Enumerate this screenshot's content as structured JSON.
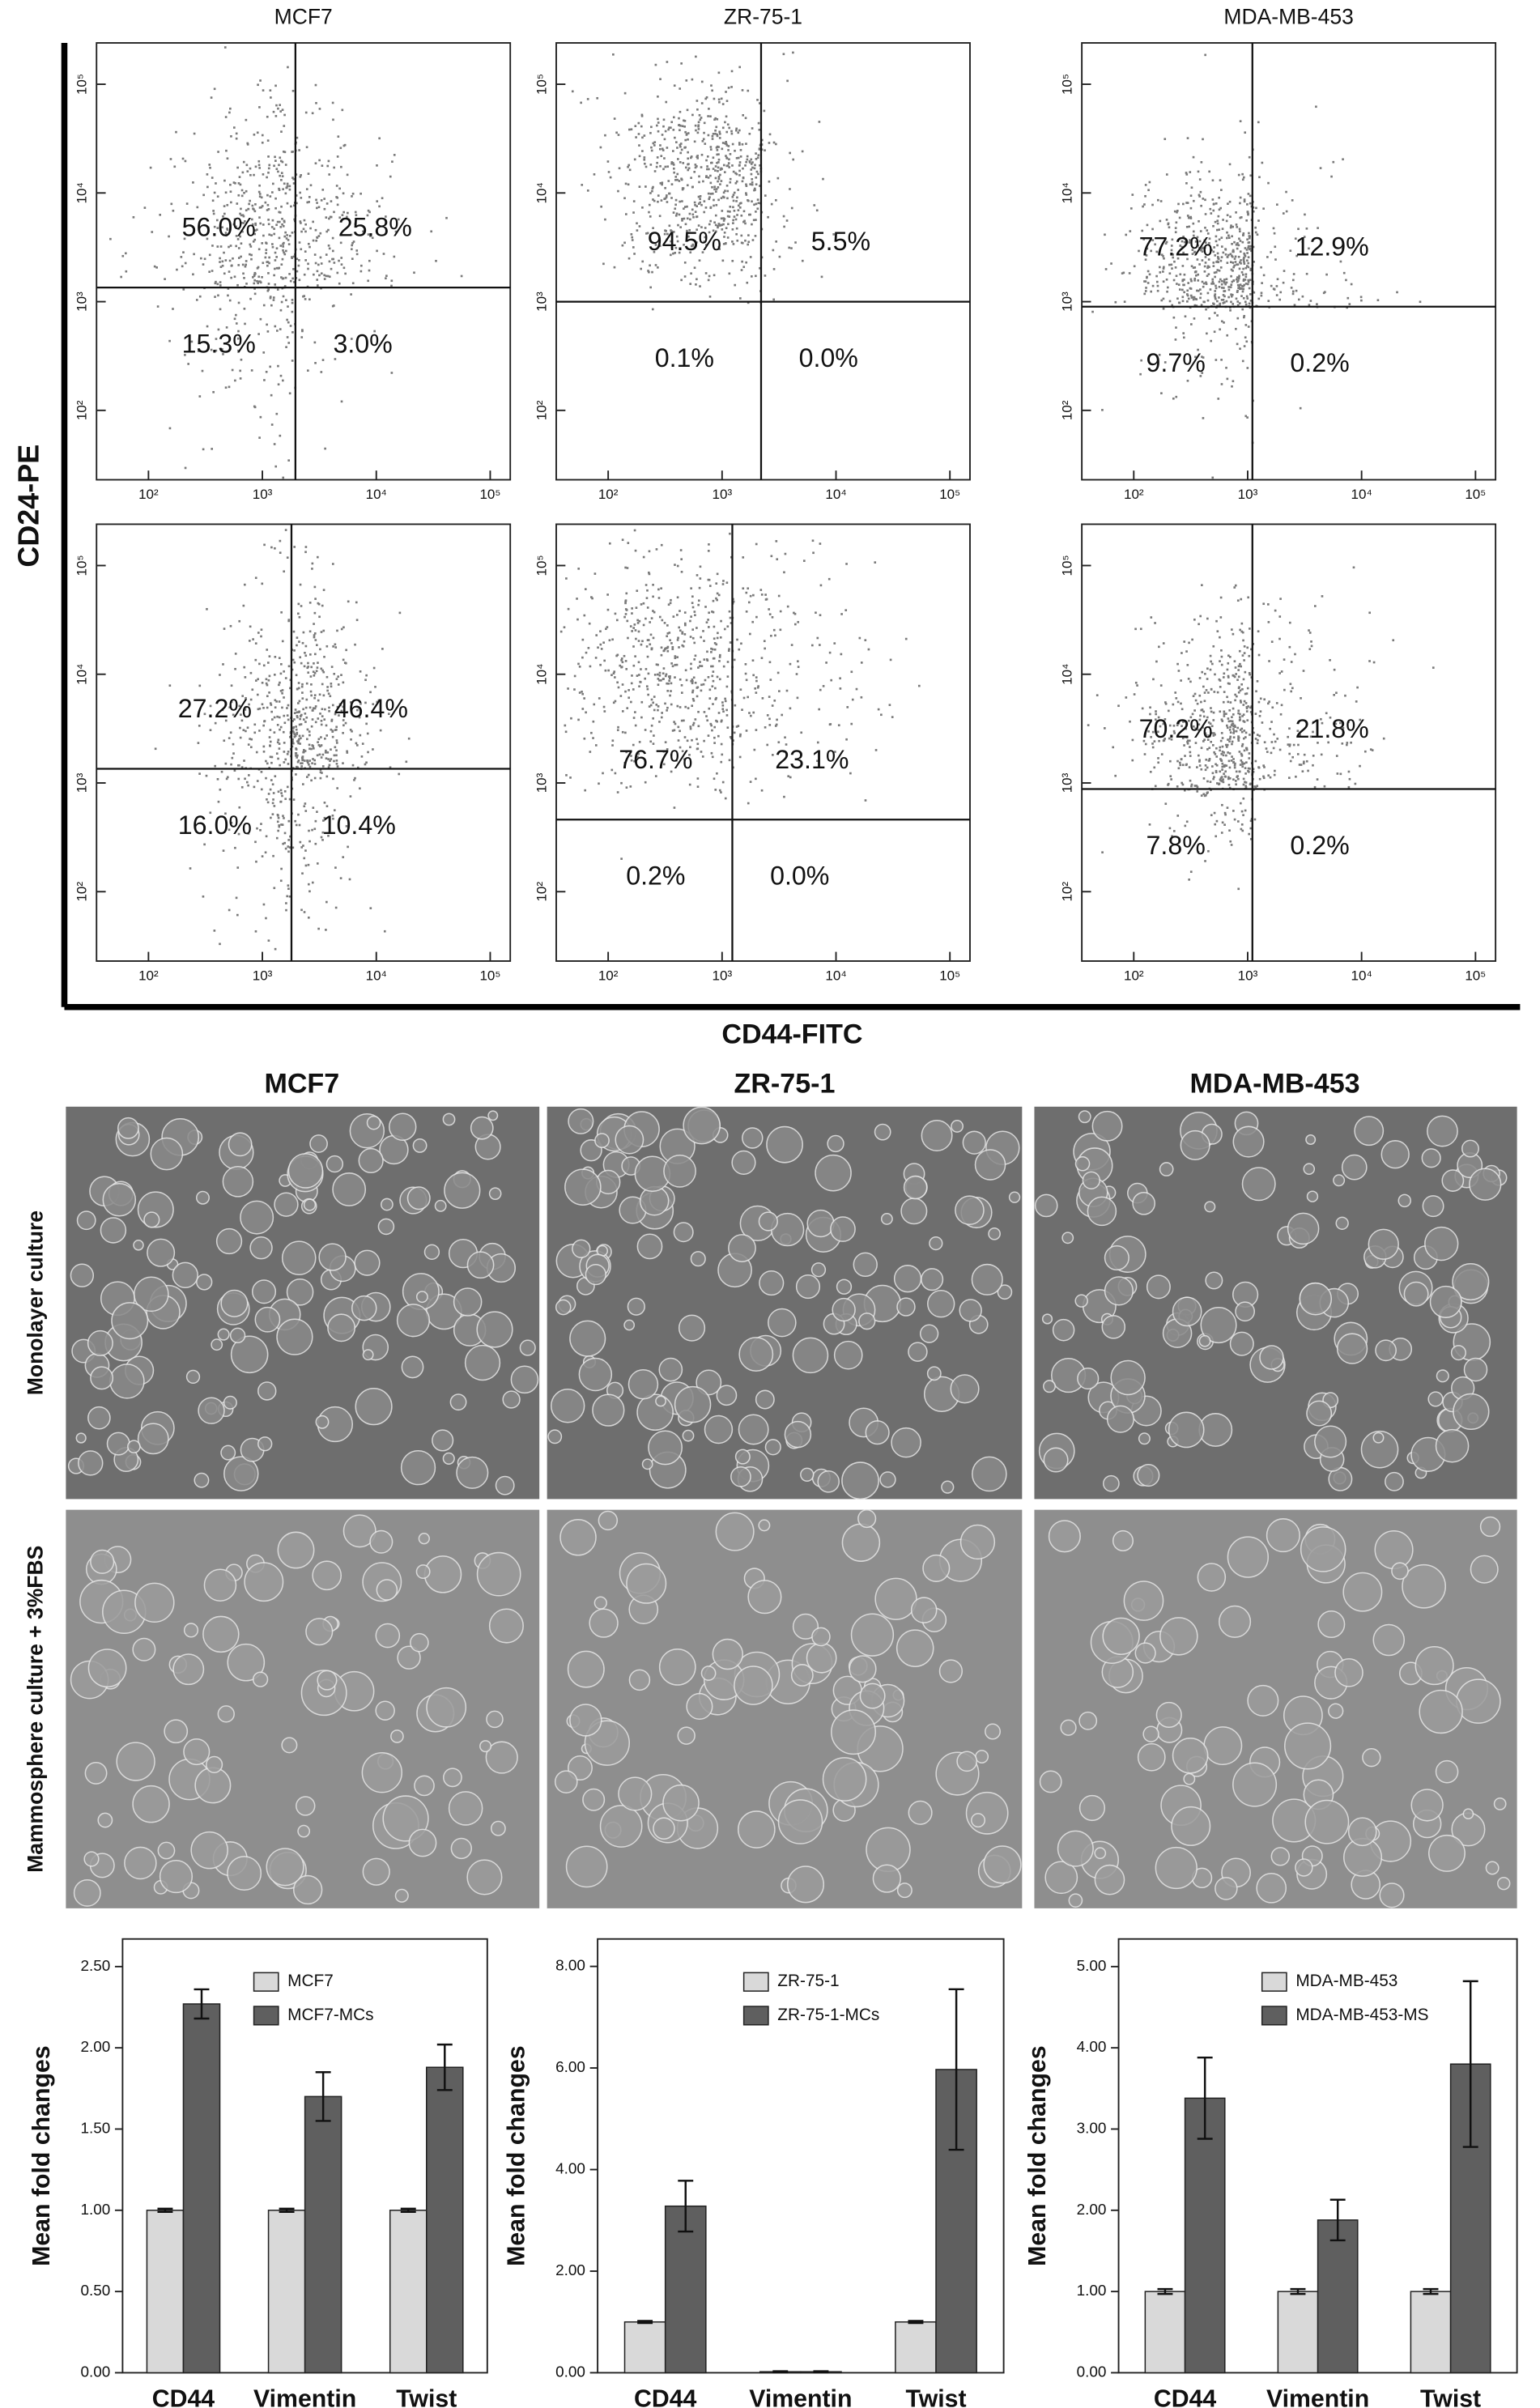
{
  "flow_axis_labels": {
    "x": "CD44-FITC",
    "y": "CD24-PE"
  },
  "micrographs": {
    "columns": [
      "MCF7",
      "ZR-75-1",
      "MDA-MB-453"
    ],
    "rows": [
      "Monolayer culture",
      "Mammosphere culture + 3%FBS"
    ]
  },
  "chart_data": [
    {
      "type": "quadrant",
      "title": "MCF7",
      "log_scale": true,
      "xlim": [
        35,
        150000
      ],
      "ylim": [
        23,
        240000
      ],
      "xticks": [
        {
          "value": 100,
          "label": "10²"
        },
        {
          "value": 1000,
          "label": "10³"
        },
        {
          "value": 10000,
          "label": "10⁴"
        },
        {
          "value": 100000,
          "label": "10⁵"
        }
      ],
      "yticks": [
        {
          "value": 100,
          "label": "10²"
        },
        {
          "value": 1000,
          "label": "10³"
        },
        {
          "value": 10000,
          "label": "10⁴"
        },
        {
          "value": 100000,
          "label": "10⁵"
        }
      ],
      "x_gate": 1950,
      "y_gate": 1350,
      "color": "#7a7a7a",
      "values": [
        56.0,
        25.8,
        15.3,
        3.0
      ],
      "value_labels": [
        "56.0%",
        "25.8%",
        "15.3%",
        "3.0%"
      ]
    },
    {
      "type": "quadrant",
      "title": "ZR-75-1",
      "log_scale": true,
      "xlim": [
        35,
        150000
      ],
      "ylim": [
        23,
        240000
      ],
      "xticks": [
        {
          "value": 100,
          "label": "10²"
        },
        {
          "value": 1000,
          "label": "10³"
        },
        {
          "value": 10000,
          "label": "10⁴"
        },
        {
          "value": 100000,
          "label": "10⁵"
        }
      ],
      "yticks": [
        {
          "value": 100,
          "label": "10²"
        },
        {
          "value": 1000,
          "label": "10³"
        },
        {
          "value": 10000,
          "label": "10⁴"
        },
        {
          "value": 100000,
          "label": "10⁵"
        }
      ],
      "x_gate": 2200,
      "y_gate": 1000,
      "color": "#7a7a7a",
      "values": [
        94.5,
        5.5,
        0.1,
        0.0
      ],
      "value_labels": [
        "94.5%",
        "5.5%",
        "0.1%",
        "0.0%"
      ]
    },
    {
      "type": "quadrant",
      "title": "MDA-MB-453",
      "log_scale": true,
      "xlim": [
        35,
        150000
      ],
      "ylim": [
        23,
        240000
      ],
      "xticks": [
        {
          "value": 100,
          "label": "10²"
        },
        {
          "value": 1000,
          "label": "10³"
        },
        {
          "value": 10000,
          "label": "10⁴"
        },
        {
          "value": 100000,
          "label": "10⁵"
        }
      ],
      "yticks": [
        {
          "value": 100,
          "label": "10²"
        },
        {
          "value": 1000,
          "label": "10³"
        },
        {
          "value": 10000,
          "label": "10⁴"
        },
        {
          "value": 100000,
          "label": "10⁵"
        }
      ],
      "x_gate": 1100,
      "y_gate": 900,
      "color": "#7a7a7a",
      "values": [
        77.2,
        12.9,
        9.7,
        0.2
      ],
      "value_labels": [
        "77.2%",
        "12.9%",
        "9.7%",
        "0.2%"
      ]
    },
    {
      "type": "quadrant",
      "log_scale": true,
      "xlim": [
        35,
        150000
      ],
      "ylim": [
        23,
        240000
      ],
      "xticks": [
        {
          "value": 100,
          "label": "10²"
        },
        {
          "value": 1000,
          "label": "10³"
        },
        {
          "value": 10000,
          "label": "10⁴"
        },
        {
          "value": 100000,
          "label": "10⁵"
        }
      ],
      "yticks": [
        {
          "value": 100,
          "label": "10²"
        },
        {
          "value": 1000,
          "label": "10³"
        },
        {
          "value": 10000,
          "label": "10⁴"
        },
        {
          "value": 100000,
          "label": "10⁵"
        }
      ],
      "x_gate": 1800,
      "y_gate": 1350,
      "color": "#7a7a7a",
      "values": [
        27.2,
        46.4,
        16.0,
        10.4
      ],
      "value_labels": [
        "27.2%",
        "46.4%",
        "16.0%",
        "10.4%"
      ]
    },
    {
      "type": "quadrant",
      "log_scale": true,
      "xlim": [
        35,
        150000
      ],
      "ylim": [
        23,
        240000
      ],
      "xticks": [
        {
          "value": 100,
          "label": "10²"
        },
        {
          "value": 1000,
          "label": "10³"
        },
        {
          "value": 10000,
          "label": "10⁴"
        },
        {
          "value": 100000,
          "label": "10⁵"
        }
      ],
      "yticks": [
        {
          "value": 100,
          "label": "10²"
        },
        {
          "value": 1000,
          "label": "10³"
        },
        {
          "value": 10000,
          "label": "10⁴"
        },
        {
          "value": 100000,
          "label": "10⁵"
        }
      ],
      "x_gate": 1230,
      "y_gate": 460,
      "color": "#7a7a7a",
      "values": [
        76.7,
        23.1,
        0.2,
        0.0
      ],
      "value_labels": [
        "76.7%",
        "23.1%",
        "0.2%",
        "0.0%"
      ]
    },
    {
      "type": "quadrant",
      "log_scale": true,
      "xlim": [
        35,
        150000
      ],
      "ylim": [
        23,
        240000
      ],
      "xticks": [
        {
          "value": 100,
          "label": "10²"
        },
        {
          "value": 1000,
          "label": "10³"
        },
        {
          "value": 10000,
          "label": "10⁴"
        },
        {
          "value": 100000,
          "label": "10⁵"
        }
      ],
      "yticks": [
        {
          "value": 100,
          "label": "10²"
        },
        {
          "value": 1000,
          "label": "10³"
        },
        {
          "value": 10000,
          "label": "10⁴"
        },
        {
          "value": 100000,
          "label": "10⁵"
        }
      ],
      "x_gate": 1100,
      "y_gate": 880,
      "color": "#7a7a7a",
      "values": [
        70.2,
        21.8,
        7.8,
        0.2
      ],
      "value_labels": [
        "70.2%",
        "21.8%",
        "7.8%",
        "0.2%"
      ]
    },
    {
      "type": "bar",
      "y_label": "Mean fold changes",
      "categories": [
        "CD44",
        "Vimentin",
        "Twist"
      ],
      "ylim": [
        0,
        2.67
      ],
      "legend": "top",
      "yticks": [
        {
          "value": 0,
          "label": "0.00"
        },
        {
          "value": 0.5,
          "label": "0.50"
        },
        {
          "value": 1,
          "label": "1.00"
        },
        {
          "value": 1.5,
          "label": "1.50"
        },
        {
          "value": 2,
          "label": "2.00"
        },
        {
          "value": 2.5,
          "label": "2.50"
        }
      ],
      "series": [
        {
          "name": "MCF7",
          "color": "#d9d9d9",
          "values": [
            1,
            1,
            1
          ],
          "errors": [
            0.01,
            0.01,
            0.01
          ]
        },
        {
          "name": "MCF7-MCs",
          "color": "#5f5f5f",
          "values": [
            2.27,
            1.7,
            1.88
          ],
          "errors": [
            0.09,
            0.15,
            0.14
          ]
        }
      ]
    },
    {
      "type": "bar",
      "y_label": "Mean fold changes",
      "categories": [
        "CD44",
        "Vimentin",
        "Twist"
      ],
      "ylim": [
        0,
        8.54
      ],
      "legend": "top",
      "yticks": [
        {
          "value": 0,
          "label": "0.00"
        },
        {
          "value": 2,
          "label": "2.00"
        },
        {
          "value": 4,
          "label": "4.00"
        },
        {
          "value": 6,
          "label": "6.00"
        },
        {
          "value": 8,
          "label": "8.00"
        }
      ],
      "series": [
        {
          "name": "ZR-75-1",
          "color": "#d9d9d9",
          "values": [
            1,
            0.02,
            1
          ],
          "errors": [
            0.02,
            0.01,
            0.02
          ]
        },
        {
          "name": "ZR-75-1-MCs",
          "color": "#5f5f5f",
          "values": [
            3.28,
            0.02,
            5.97
          ],
          "errors": [
            0.5,
            0.01,
            1.58
          ]
        }
      ]
    },
    {
      "type": "bar",
      "y_label": "Mean fold changes",
      "categories": [
        "CD44",
        "Vimentin",
        "Twist"
      ],
      "ylim": [
        0,
        5.34
      ],
      "legend": "top",
      "yticks": [
        {
          "value": 0,
          "label": "0.00"
        },
        {
          "value": 1,
          "label": "1.00"
        },
        {
          "value": 2,
          "label": "2.00"
        },
        {
          "value": 3,
          "label": "3.00"
        },
        {
          "value": 4,
          "label": "4.00"
        },
        {
          "value": 5,
          "label": "5.00"
        }
      ],
      "series": [
        {
          "name": "MDA-MB-453",
          "color": "#d9d9d9",
          "values": [
            1,
            1,
            1
          ],
          "errors": [
            0.03,
            0.03,
            0.03
          ]
        },
        {
          "name": "MDA-MB-453-MS",
          "color": "#5f5f5f",
          "values": [
            3.38,
            1.88,
            3.8
          ],
          "errors": [
            0.5,
            0.25,
            1.02
          ]
        }
      ]
    }
  ]
}
